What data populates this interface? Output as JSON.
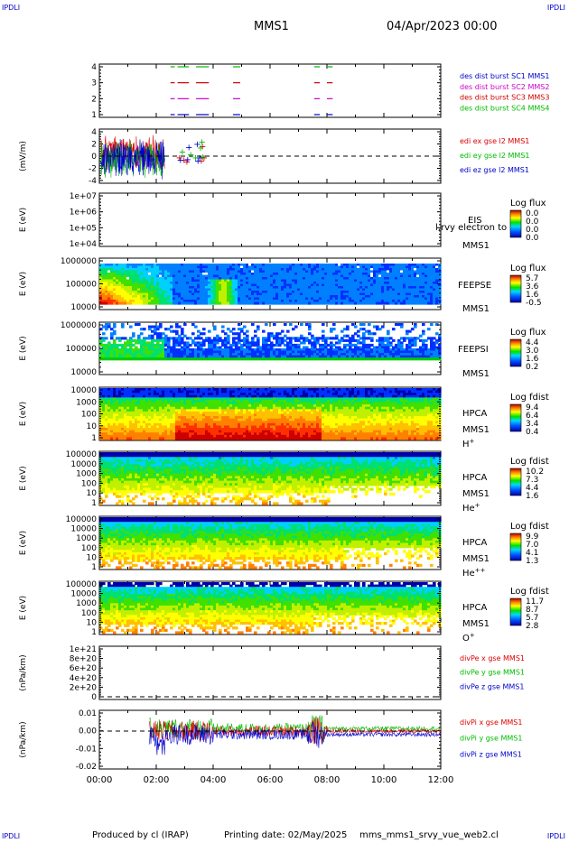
{
  "corner_label": "IPDLI",
  "header": {
    "spacecraft": "MMS1",
    "date": "04/Apr/2023 00:00"
  },
  "footer": {
    "credit": "Produced by cl (IRAP)",
    "printing_date": "Printing date: 02/May/2025",
    "script": "mms_mms1_srvy_vue_web2.cl"
  },
  "time_axis": {
    "ticks": [
      "00:00",
      "02:00",
      "04:00",
      "06:00",
      "08:00",
      "10:00",
      "12:00"
    ],
    "range_hours": [
      0,
      12
    ]
  },
  "chart_data": [
    {
      "type": "scatter",
      "panel": "burst-availability",
      "yticks": [
        "4",
        "3",
        "2",
        "1"
      ],
      "series": [
        {
          "name": "des dist burst SC1 MMS1",
          "color": "#0000cc",
          "level": 1
        },
        {
          "name": "des dist burst SC2 MMS2",
          "color": "#cc00cc",
          "level": 2
        },
        {
          "name": "des dist burst SC3 MMS3",
          "color": "#cc0000",
          "level": 3
        },
        {
          "name": "des dist burst SC4 MMS4",
          "color": "#00bb00",
          "level": 4
        }
      ],
      "intervals_hours": [
        [
          2.5,
          2.65
        ],
        [
          2.75,
          3.15
        ],
        [
          3.4,
          3.85
        ],
        [
          4.7,
          4.95
        ],
        [
          7.55,
          7.75
        ],
        [
          8.0,
          8.2
        ]
      ]
    },
    {
      "type": "line",
      "panel": "edi-e-field",
      "ylabel": "(mV/m)",
      "yticks": [
        "4",
        "2",
        "0",
        "-2",
        "-4"
      ],
      "ylim": [
        -5,
        5
      ],
      "series": [
        {
          "name": "edi ex gse l2 MMS1",
          "color": "#dd0000"
        },
        {
          "name": "edi ey gse l2 MMS1",
          "color": "#00bb00"
        },
        {
          "name": "edi ez gse l2 MMS1",
          "color": "#0000cc"
        }
      ]
    },
    {
      "type": "heatmap",
      "panel": "eis",
      "ylabel": "E (eV)",
      "yticks": [
        "1e+07",
        "1e+06",
        "1e+05",
        "1e+04"
      ],
      "labels": [
        "EIS",
        "MMS1"
      ],
      "overlay_text": "l,rvy electron to",
      "colorbar": {
        "title": "Log flux",
        "ticks": [
          "0.0",
          "0.0",
          "0.0",
          "0.0"
        ]
      }
    },
    {
      "type": "heatmap",
      "panel": "feeps-e",
      "ylabel": "E (eV)",
      "yticks": [
        "1000000",
        "100000",
        "10000"
      ],
      "labels": [
        "FEEPSE",
        "MMS1"
      ],
      "colorbar": {
        "title": "Log flux",
        "ticks": [
          "5.7",
          "3.6",
          "1.6",
          "-0.5"
        ]
      }
    },
    {
      "type": "heatmap",
      "panel": "feeps-i",
      "ylabel": "E (eV)",
      "yticks": [
        "1000000",
        "100000",
        "10000"
      ],
      "labels": [
        "FEEPSI",
        "MMS1"
      ],
      "colorbar": {
        "title": "Log flux",
        "ticks": [
          "4.4",
          "3.0",
          "1.6",
          "0.2"
        ]
      }
    },
    {
      "type": "heatmap",
      "panel": "hpca-h",
      "ylabel": "E (eV)",
      "yticks": [
        "10000",
        "1000",
        "100",
        "10",
        "1"
      ],
      "labels": [
        "HPCA",
        "MMS1",
        "H+"
      ],
      "colorbar": {
        "title": "Log fdist",
        "ticks": [
          "9.4",
          "6.4",
          "3.4",
          "0.4"
        ]
      }
    },
    {
      "type": "heatmap",
      "panel": "hpca-he",
      "ylabel": "E (eV)",
      "yticks": [
        "100000",
        "10000",
        "1000",
        "100",
        "10",
        "1"
      ],
      "labels": [
        "HPCA",
        "MMS1",
        "He+"
      ],
      "colorbar": {
        "title": "Log fdist",
        "ticks": [
          "10.2",
          "7.3",
          "4.4",
          "1.6"
        ]
      }
    },
    {
      "type": "heatmap",
      "panel": "hpca-he2",
      "ylabel": "E (eV)",
      "yticks": [
        "100000",
        "10000",
        "1000",
        "100",
        "10",
        "1"
      ],
      "labels": [
        "HPCA",
        "MMS1",
        "He++"
      ],
      "colorbar": {
        "title": "Log fdist",
        "ticks": [
          "9.9",
          "7.0",
          "4.1",
          "1.3"
        ]
      }
    },
    {
      "type": "heatmap",
      "panel": "hpca-o",
      "ylabel": "E (eV)",
      "yticks": [
        "100000",
        "10000",
        "1000",
        "100",
        "10",
        "1"
      ],
      "labels": [
        "HPCA",
        "MMS1",
        "O+"
      ],
      "colorbar": {
        "title": "Log fdist",
        "ticks": [
          "11.7",
          "8.7",
          "5.7",
          "2.8"
        ]
      }
    },
    {
      "type": "line",
      "panel": "divpe",
      "ylabel": "(nPa/km)",
      "yticks": [
        "1e+21",
        "8e+20",
        "6e+20",
        "4e+20",
        "2e+20",
        "0"
      ],
      "ylim": [
        0,
        1.1e+21
      ],
      "series": [
        {
          "name": "divPe x gse MMS1",
          "color": "#dd0000"
        },
        {
          "name": "divPe y gse MMS1",
          "color": "#00bb00"
        },
        {
          "name": "divPe z gse MMS1",
          "color": "#0000cc"
        }
      ]
    },
    {
      "type": "line",
      "panel": "divpi",
      "ylabel": "(nPa/km)",
      "yticks": [
        "0.01",
        "0.00",
        "-0.01",
        "-0.02"
      ],
      "ylim": [
        -0.022,
        0.012
      ],
      "series": [
        {
          "name": "divPi x gse MMS1",
          "color": "#dd0000"
        },
        {
          "name": "divPi y gse MMS1",
          "color": "#00bb00"
        },
        {
          "name": "divPi z gse MMS1",
          "color": "#0000cc"
        }
      ]
    }
  ]
}
